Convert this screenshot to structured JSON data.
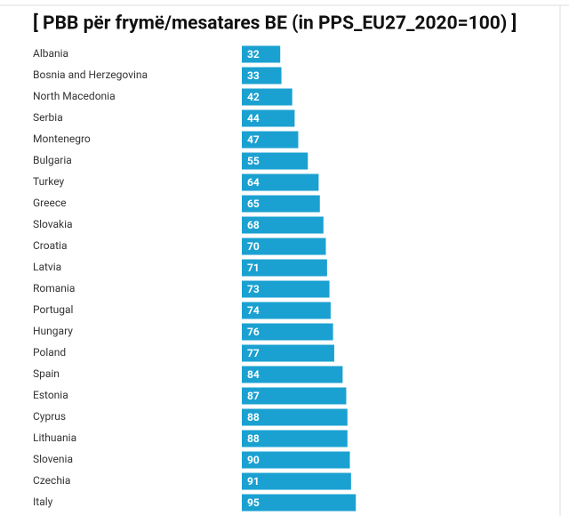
{
  "chart_data": {
    "type": "bar",
    "orientation": "horizontal",
    "title": "[ PBB për frymë/mesatares BE (in PPS_EU27_2020=100) ]",
    "categories": [
      "Albania",
      "Bosnia and Herzegovina",
      "North Macedonia",
      "Serbia",
      "Montenegro",
      "Bulgaria",
      "Turkey",
      "Greece",
      "Slovakia",
      "Croatia",
      "Latvia",
      "Romania",
      "Portugal",
      "Hungary",
      "Poland",
      "Spain",
      "Estonia",
      "Cyprus",
      "Lithuania",
      "Slovenia",
      "Czechia",
      "Italy"
    ],
    "values": [
      32,
      33,
      42,
      44,
      47,
      55,
      64,
      65,
      68,
      70,
      71,
      73,
      74,
      76,
      77,
      84,
      87,
      88,
      88,
      90,
      91,
      95
    ],
    "color": "#1ba1d1"
  }
}
